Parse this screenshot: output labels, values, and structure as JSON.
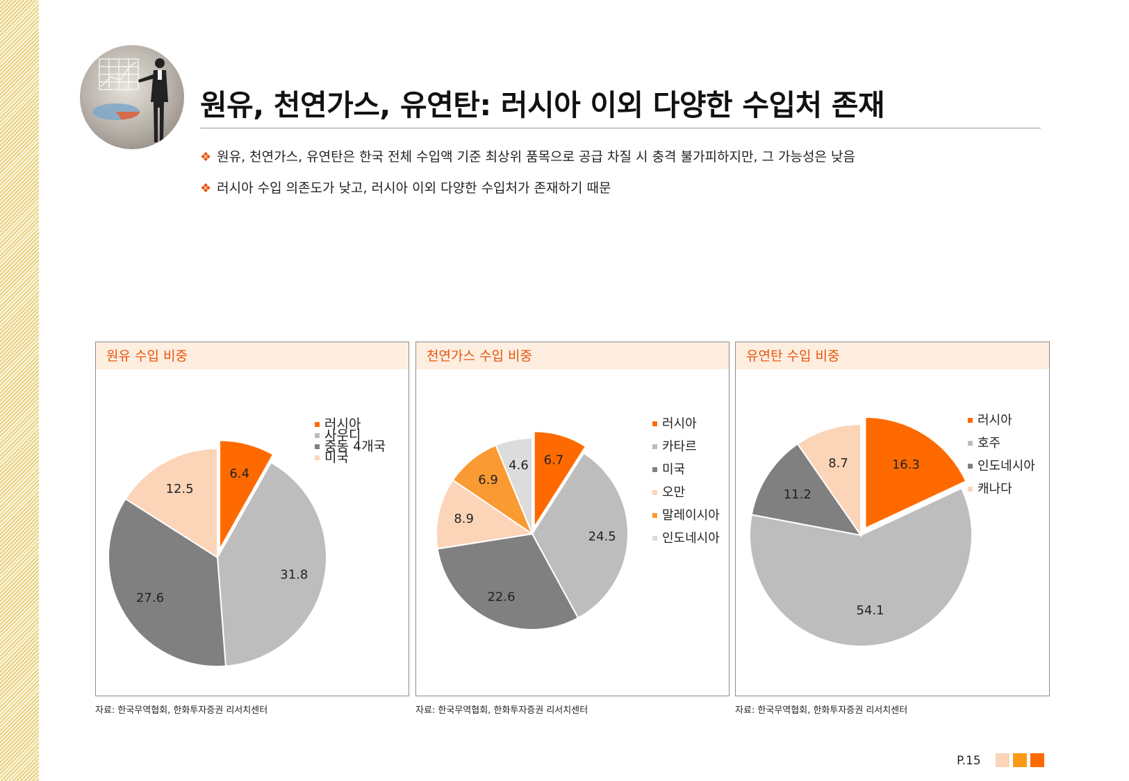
{
  "title": "원유, 천연가스, 유연탄: 러시아 이외 다양한 수입처 존재",
  "bullets": [
    "원유, 천연가스, 유연탄은 한국 전체 수입액 기준 최상위 품목으로 공급 차질 시 충격 불가피하지만, 그 가능성은 낮음",
    "러시아 수입 의존도가 낮고, 러시아 이외 다양한 수입처가 존재하기 때문"
  ],
  "bullet_mark": "❖",
  "page_number": "P.15",
  "chart_data": [
    {
      "type": "pie",
      "title": "원유 수입 비중",
      "source": "자료: 한국무역협회, 한화투자증권 리서치센터",
      "slices": [
        {
          "label": "러시아",
          "value": 6.4,
          "color": "#ff6a00",
          "exploded": true
        },
        {
          "label": "사우디",
          "value": 31.8,
          "color": "#bdbdbd"
        },
        {
          "label": "중동 4개국",
          "value": 27.6,
          "color": "#808080"
        },
        {
          "label": "미국",
          "value": 12.5,
          "color": "#fcd4b8"
        }
      ],
      "legend_position": "top-right"
    },
    {
      "type": "pie",
      "title": "천연가스 수입 비중",
      "source": "자료: 한국무역협회, 한화투자증권 리서치센터",
      "slices": [
        {
          "label": "러시아",
          "value": 6.7,
          "color": "#ff6a00",
          "exploded": true
        },
        {
          "label": "카타르",
          "value": 24.5,
          "color": "#bdbdbd"
        },
        {
          "label": "미국",
          "value": 22.6,
          "color": "#808080"
        },
        {
          "label": "오만",
          "value": 8.9,
          "color": "#fcd4b8"
        },
        {
          "label": "말레이시아",
          "value": 6.9,
          "color": "#fa9a32"
        },
        {
          "label": "인도네시아",
          "value": 4.6,
          "color": "#dcdcdc"
        }
      ],
      "legend_position": "top-right"
    },
    {
      "type": "pie",
      "title": "유연탄 수입 비중",
      "source": "자료: 한국무역협회, 한화투자증권 리서치센터",
      "slices": [
        {
          "label": "러시아",
          "value": 16.3,
          "color": "#ff6a00",
          "exploded": true
        },
        {
          "label": "호주",
          "value": 54.1,
          "color": "#bdbdbd"
        },
        {
          "label": "인도네시아",
          "value": 11.2,
          "color": "#808080"
        },
        {
          "label": "캐나다",
          "value": 8.7,
          "color": "#fcd4b8"
        }
      ],
      "legend_position": "top-right"
    }
  ]
}
